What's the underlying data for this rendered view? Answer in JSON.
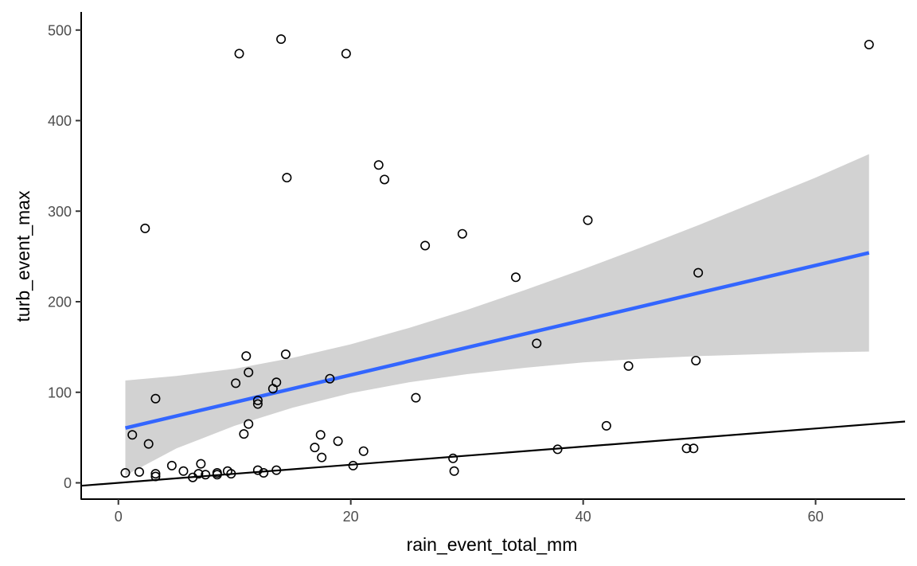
{
  "chart_data": {
    "type": "scatter",
    "title": "",
    "xlabel": "rain_event_total_mm",
    "ylabel": "turb_event_max",
    "xlim": [
      -3.2,
      67.7
    ],
    "ylim": [
      -18,
      520
    ],
    "x_ticks": [
      0,
      20,
      40,
      60
    ],
    "y_ticks": [
      0,
      100,
      200,
      300,
      400,
      500
    ],
    "grid": false,
    "legend": "none",
    "colors": {
      "points": "#000000",
      "fit_line": "#3366FF",
      "confidence_band": "#BFBFBF",
      "reference_line": "#000000",
      "axis": "#000000",
      "tick_label": "#4d4d4d"
    },
    "points": [
      [
        0.6,
        11
      ],
      [
        1.2,
        53
      ],
      [
        1.8,
        12
      ],
      [
        2.3,
        281
      ],
      [
        2.6,
        43
      ],
      [
        3.2,
        93
      ],
      [
        3.2,
        10
      ],
      [
        3.2,
        7
      ],
      [
        4.6,
        19
      ],
      [
        5.6,
        13
      ],
      [
        6.4,
        6
      ],
      [
        6.9,
        10
      ],
      [
        7.1,
        21
      ],
      [
        7.5,
        9
      ],
      [
        8.5,
        11
      ],
      [
        8.5,
        9
      ],
      [
        9.4,
        13
      ],
      [
        9.7,
        10
      ],
      [
        10.1,
        110
      ],
      [
        10.4,
        474
      ],
      [
        10.8,
        54
      ],
      [
        11.0,
        140
      ],
      [
        11.2,
        122
      ],
      [
        11.2,
        65
      ],
      [
        12.0,
        87
      ],
      [
        12.0,
        91
      ],
      [
        12.0,
        14
      ],
      [
        12.5,
        11
      ],
      [
        13.3,
        104
      ],
      [
        13.6,
        111
      ],
      [
        13.6,
        14
      ],
      [
        14.0,
        490
      ],
      [
        14.4,
        142
      ],
      [
        14.5,
        337
      ],
      [
        16.9,
        39
      ],
      [
        17.4,
        53
      ],
      [
        17.5,
        28
      ],
      [
        18.2,
        115
      ],
      [
        18.9,
        46
      ],
      [
        19.6,
        474
      ],
      [
        20.2,
        19
      ],
      [
        21.1,
        35
      ],
      [
        22.4,
        351
      ],
      [
        22.9,
        335
      ],
      [
        25.6,
        94
      ],
      [
        26.4,
        262
      ],
      [
        28.8,
        27
      ],
      [
        28.9,
        13
      ],
      [
        29.6,
        275
      ],
      [
        34.2,
        227
      ],
      [
        36.0,
        154
      ],
      [
        37.8,
        37
      ],
      [
        40.4,
        290
      ],
      [
        42.0,
        63
      ],
      [
        43.9,
        129
      ],
      [
        48.9,
        38
      ],
      [
        49.5,
        38
      ],
      [
        49.7,
        135
      ],
      [
        49.9,
        232
      ],
      [
        64.6,
        484
      ]
    ],
    "fit": {
      "x_range": [
        0.6,
        64.6
      ],
      "y_at_range": [
        60.5,
        254
      ]
    },
    "confidence_band": {
      "x": [
        0.6,
        5,
        10,
        15,
        20,
        25,
        30,
        35,
        40,
        45,
        50,
        55,
        60,
        64.6
      ],
      "lower": [
        8,
        38,
        63,
        83,
        99,
        111,
        120,
        127,
        133,
        137,
        140,
        142,
        144,
        145
      ],
      "upper": [
        113,
        118,
        126,
        138,
        153,
        171,
        191,
        213,
        236,
        260,
        285,
        311,
        337,
        363
      ]
    },
    "reference_line": {
      "slope": 1,
      "intercept": 0
    }
  }
}
